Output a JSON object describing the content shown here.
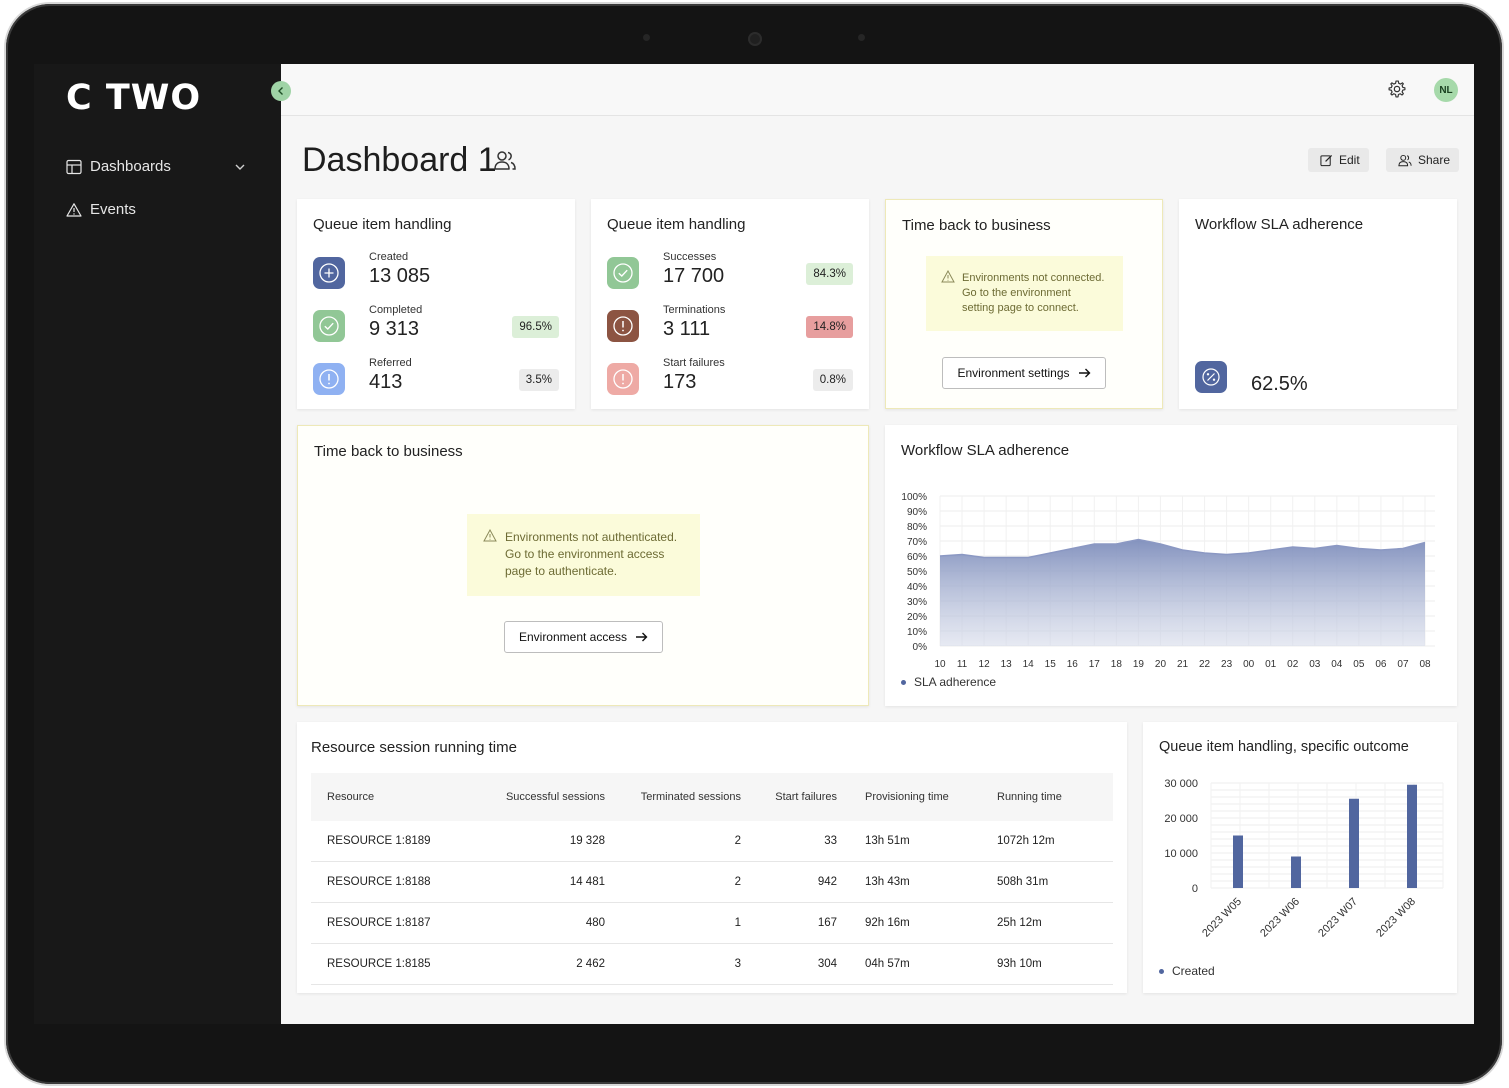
{
  "app": {
    "logo": "C TWO"
  },
  "sidebar": {
    "items": [
      {
        "label": "Dashboards"
      },
      {
        "label": "Events"
      }
    ]
  },
  "header": {
    "avatar_initials": "NL"
  },
  "page": {
    "title": "Dashboard 1",
    "edit_label": "Edit",
    "share_label": "Share"
  },
  "queue_card_1": {
    "title": "Queue item handling",
    "metrics": [
      {
        "label": "Created",
        "value": "13 085",
        "pct": ""
      },
      {
        "label": "Completed",
        "value": "9 313",
        "pct": "96.5%"
      },
      {
        "label": "Referred",
        "value": "413",
        "pct": "3.5%"
      }
    ]
  },
  "queue_card_2": {
    "title": "Queue item handling",
    "metrics": [
      {
        "label": "Successes",
        "value": "17 700",
        "pct": "84.3%"
      },
      {
        "label": "Terminations",
        "value": "3 111",
        "pct": "14.8%"
      },
      {
        "label": "Start failures",
        "value": "173",
        "pct": "0.8%"
      }
    ]
  },
  "time_card_small": {
    "title": "Time back to business",
    "notice": [
      "Environments not connected.",
      "Go to the environment",
      "setting page to connect."
    ],
    "button": "Environment settings"
  },
  "sla_card_small": {
    "title": "Workflow SLA adherence",
    "value": "62.5%"
  },
  "time_card_large": {
    "title": "Time back to business",
    "notice": [
      "Environments not authenticated.",
      "Go to the environment access",
      "page to authenticate."
    ],
    "button": "Environment access"
  },
  "sla_chart": {
    "title": "Workflow SLA adherence",
    "y_ticks": [
      "100%",
      "90%",
      "80%",
      "70%",
      "60%",
      "50%",
      "40%",
      "30%",
      "20%",
      "10%",
      "0%"
    ],
    "legend": "SLA adherence"
  },
  "resource_table": {
    "title": "Resource session running time",
    "columns": [
      "Resource",
      "Successful sessions",
      "Terminated sessions",
      "Start failures",
      "Provisioning time",
      "Running time"
    ],
    "rows": [
      [
        "RESOURCE 1:8189",
        "19 328",
        "2",
        "33",
        "13h 51m",
        "1072h 12m"
      ],
      [
        "RESOURCE 1:8188",
        "14 481",
        "2",
        "942",
        "13h 43m",
        "508h 31m"
      ],
      [
        "RESOURCE 1:8187",
        "480",
        "1",
        "167",
        "92h 16m",
        "25h 12m"
      ],
      [
        "RESOURCE 1:8185",
        "2 462",
        "3",
        "304",
        "04h 57m",
        "93h 10m"
      ]
    ]
  },
  "outcome_chart": {
    "title": "Queue item handling, specific outcome",
    "y_ticks": [
      "30 000",
      "20 000",
      "10 000",
      "0"
    ],
    "legend": "Created"
  },
  "colors": {
    "accent": "#51669f",
    "warn_bg": "#fbfbda",
    "sidebar": "#181818"
  },
  "chart_data": [
    {
      "type": "area",
      "x": [
        "10",
        "11",
        "12",
        "13",
        "14",
        "15",
        "16",
        "17",
        "18",
        "19",
        "20",
        "21",
        "22",
        "23",
        "00",
        "01",
        "02",
        "03",
        "04",
        "05",
        "06",
        "07",
        "08"
      ],
      "series": [
        {
          "name": "SLA adherence",
          "values": [
            60,
            61,
            59,
            59,
            59,
            62,
            65,
            68,
            68,
            71,
            68,
            64,
            62,
            61,
            62,
            64,
            66,
            65,
            67,
            65,
            64,
            65,
            69
          ]
        }
      ],
      "ylim": [
        0,
        100
      ],
      "y_unit": "%",
      "grid": true,
      "legend": "bottom-left"
    },
    {
      "type": "bar",
      "categories": [
        "2023 W05",
        "2023 W06",
        "2023 W07",
        "2023 W08"
      ],
      "series": [
        {
          "name": "Created",
          "values": [
            15000,
            9000,
            25500,
            29500
          ]
        }
      ],
      "ylim": [
        0,
        30000
      ],
      "grid": true,
      "legend": "bottom-left"
    }
  ]
}
